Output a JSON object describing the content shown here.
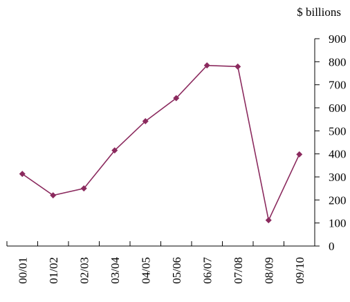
{
  "chart_data": {
    "type": "line",
    "categories": [
      "00/01",
      "01/02",
      "02/03",
      "03/04",
      "04/05",
      "05/06",
      "06/07",
      "07/08",
      "08/09",
      "09/10"
    ],
    "series": [
      {
        "values": [
          313,
          220,
          250,
          415,
          542,
          642,
          784,
          779,
          112,
          398
        ],
        "color": "#8b2a5e",
        "marker": "diamond"
      }
    ],
    "y_unit_label": "$ billions",
    "y_ticks": [
      "0",
      "100",
      "200",
      "300",
      "400",
      "500",
      "600",
      "700",
      "800",
      "900"
    ],
    "ylim": [
      0,
      900
    ],
    "y_axis_side": "right",
    "grid": false,
    "legend": "none"
  }
}
